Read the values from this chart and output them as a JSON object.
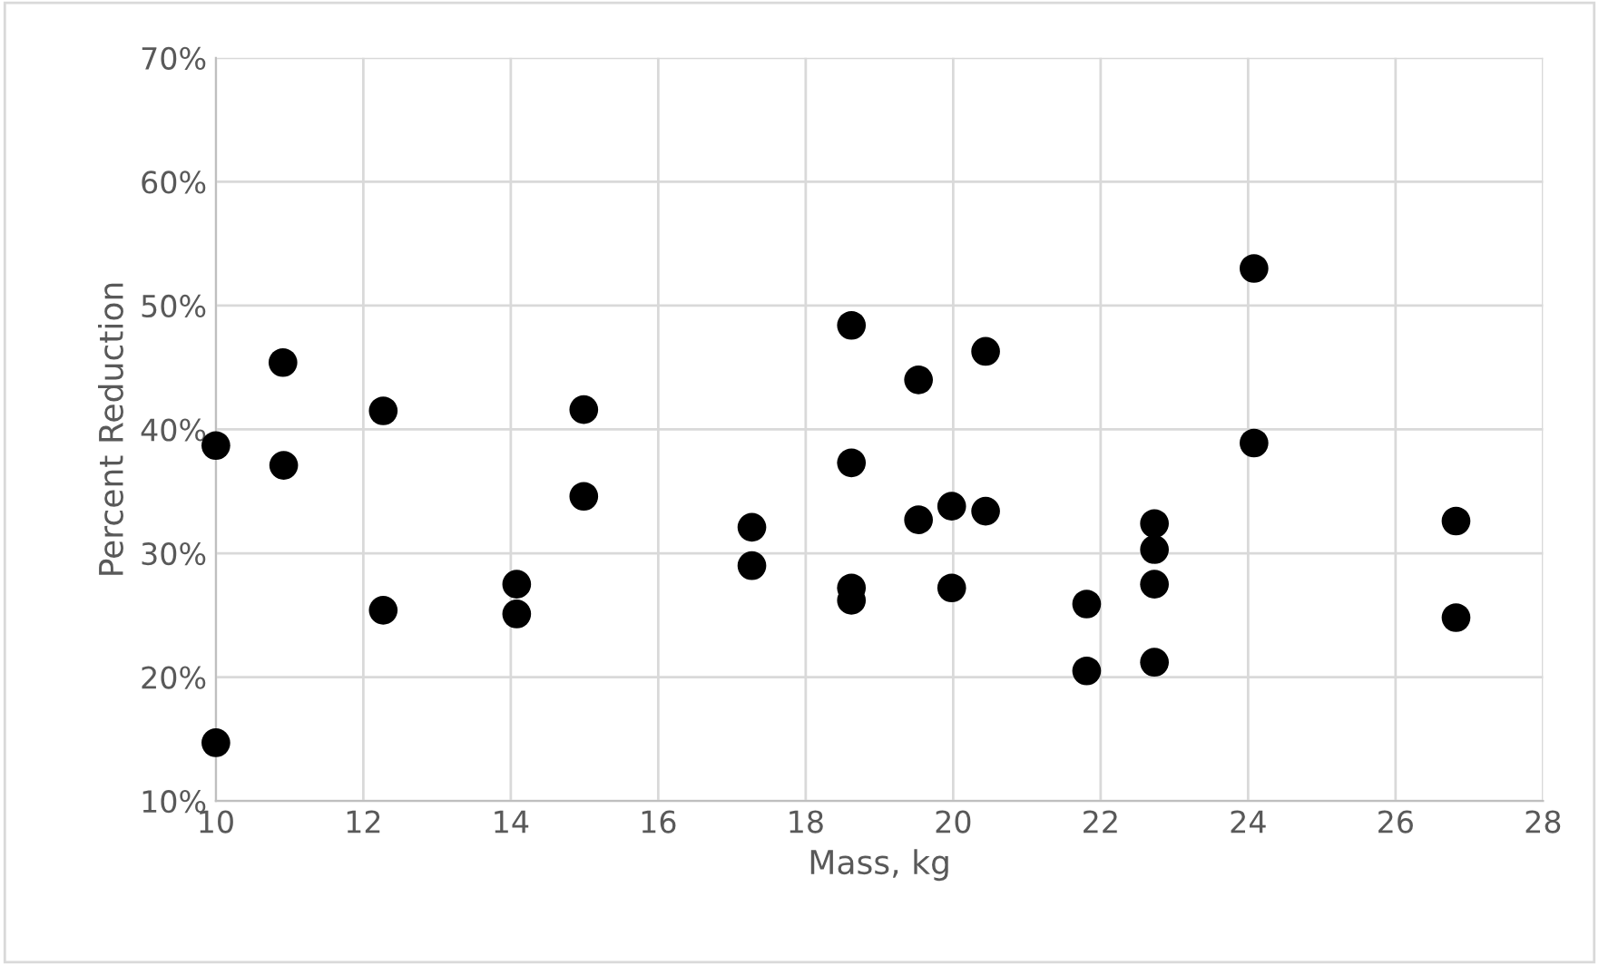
{
  "chart_data": {
    "type": "scatter",
    "xlabel": "Mass, kg",
    "ylabel": "Percent Reduction",
    "x": [
      10,
      10,
      10.91,
      10.92,
      12.27,
      12.27,
      14.08,
      14.08,
      14.99,
      14.99,
      17.27,
      17.27,
      18.62,
      18.62,
      18.62,
      18.62,
      19.53,
      19.53,
      20.44,
      19.98,
      20.44,
      19.98,
      21.81,
      21.81,
      22.73,
      22.73,
      22.73,
      22.73,
      24.08,
      24.08,
      26.82,
      26.82
    ],
    "series": [
      {
        "color": "#000000",
        "values": [
          38.7,
          14.7,
          45.4,
          37.1,
          41.5,
          25.4,
          27.5,
          25.1,
          41.6,
          34.6,
          32.1,
          29.0,
          48.4,
          37.3,
          27.2,
          26.2,
          44.0,
          32.7,
          46.3,
          33.8,
          33.4,
          27.2,
          25.9,
          20.5,
          32.4,
          30.3,
          27.5,
          21.2,
          53.0,
          38.9,
          32.6,
          24.8
        ]
      }
    ],
    "xlim": [
      10,
      28
    ],
    "xticks": [
      10,
      12,
      14,
      16,
      18,
      20,
      22,
      24,
      26,
      28
    ],
    "ylim": [
      10,
      70
    ],
    "yticks": [
      {
        "value": 10,
        "label": "10%"
      },
      {
        "value": 20,
        "label": "20%"
      },
      {
        "value": 30,
        "label": "30%"
      },
      {
        "value": 40,
        "label": "40%"
      },
      {
        "value": 50,
        "label": "50%"
      },
      {
        "value": 60,
        "label": "60%"
      },
      {
        "value": 70,
        "label": "70%"
      }
    ],
    "grid": true,
    "marker": "circle",
    "legend": false
  }
}
